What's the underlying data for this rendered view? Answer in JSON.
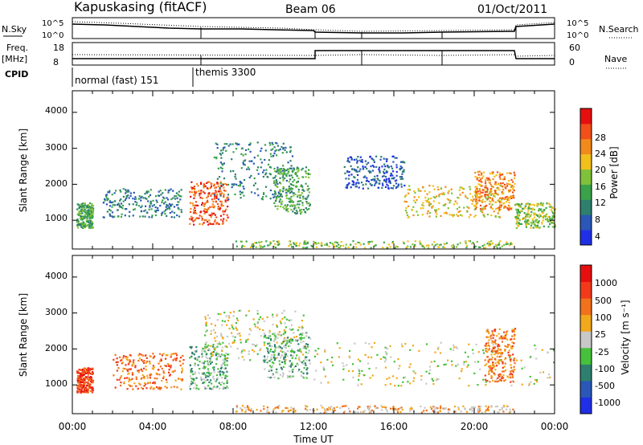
{
  "header": {
    "station": "Kapuskasing (fitACF)",
    "beam": "Beam 06",
    "date": "01/Oct/2011"
  },
  "nsky_panel": {
    "left_label": "N.Sky",
    "left_ticks": [
      "10^5",
      "10^0"
    ],
    "right_label": "N.Search",
    "right_ticks": [
      "10^5",
      "10^0"
    ]
  },
  "freq_panel": {
    "left_label_1": "Freq.",
    "left_label_2": "[MHz]",
    "left_ticks": [
      "18",
      "8"
    ],
    "right_label": "Nave",
    "right_ticks": [
      "60",
      "0"
    ]
  },
  "cpid": {
    "label": "CPID",
    "modes": [
      "normal (fast) 151",
      "themis 3300"
    ]
  },
  "x_axis": {
    "title": "Time UT",
    "ticks": [
      "00:00",
      "04:00",
      "08:00",
      "12:00",
      "16:00",
      "20:00",
      "00:00"
    ]
  },
  "chart_data": [
    {
      "type": "heatmap",
      "name": "power",
      "ylabel": "Slant Range [km]",
      "yticks": [
        "1000",
        "2000",
        "3000",
        "4000"
      ],
      "ylim": [
        200,
        4600
      ],
      "xlim": [
        0,
        24
      ],
      "colorbar_label": "Power [dB]",
      "colorbar_ticks": [
        "28",
        "24",
        "20",
        "16",
        "12",
        "8",
        "4"
      ],
      "colors": [
        "#1f2fe6",
        "#2a57b8",
        "#2e7f6e",
        "#3aa34a",
        "#7fc23a",
        "#f2c01b",
        "#f28a1b",
        "#f24f1b",
        "#e60f0f"
      ],
      "regions": [
        {
          "t0": 0.2,
          "t1": 1.0,
          "r0": 800,
          "r1": 1500,
          "level": 3
        },
        {
          "t0": 1.5,
          "t1": 5.5,
          "r0": 1100,
          "r1": 1900,
          "level": 2
        },
        {
          "t0": 5.8,
          "t1": 7.7,
          "r0": 900,
          "r1": 2100,
          "level": 7
        },
        {
          "t0": 7.0,
          "t1": 11.0,
          "r0": 1600,
          "r1": 3200,
          "level": 2
        },
        {
          "t0": 10.0,
          "t1": 11.8,
          "r0": 1200,
          "r1": 2500,
          "level": 3
        },
        {
          "t0": 13.5,
          "t1": 16.5,
          "r0": 1900,
          "r1": 2800,
          "level": 1
        },
        {
          "t0": 16.5,
          "t1": 21.5,
          "r0": 1100,
          "r1": 2000,
          "level": 5
        },
        {
          "t0": 20.0,
          "t1": 22.0,
          "r0": 1300,
          "r1": 2400,
          "level": 6
        },
        {
          "t0": 22.0,
          "t1": 24.0,
          "r0": 800,
          "r1": 1500,
          "level": 4
        },
        {
          "t0": 8.0,
          "t1": 22.0,
          "r0": 250,
          "r1": 450,
          "level": 4
        }
      ]
    },
    {
      "type": "heatmap",
      "name": "velocity",
      "ylabel": "Slant Range [km]",
      "yticks": [
        "1000",
        "2000",
        "3000",
        "4000"
      ],
      "ylim": [
        200,
        4600
      ],
      "xlim": [
        0,
        24
      ],
      "colorbar_label": "Velocity  [m s⁻¹]",
      "colorbar_ticks": [
        "1000",
        "500",
        "100",
        "25",
        "-25",
        "-100",
        "-500",
        "-1000"
      ],
      "colors": [
        "#1f2fe6",
        "#2a57b8",
        "#2e7f6e",
        "#46c23a",
        "#c8c8c8",
        "#f2a81b",
        "#f2711b",
        "#f23a1b",
        "#e60f0f"
      ],
      "regions": [
        {
          "t0": 0.2,
          "t1": 1.0,
          "r0": 800,
          "r1": 1500,
          "level": 7
        },
        {
          "t0": 2.0,
          "t1": 5.5,
          "r0": 900,
          "r1": 1900,
          "level": 6
        },
        {
          "t0": 5.8,
          "t1": 7.7,
          "r0": 900,
          "r1": 2100,
          "level": 3
        },
        {
          "t0": 6.5,
          "t1": 11.5,
          "r0": 1700,
          "r1": 3100,
          "level": 4
        },
        {
          "t0": 9.5,
          "t1": 11.8,
          "r0": 1200,
          "r1": 2500,
          "level": 3
        },
        {
          "t0": 12.0,
          "t1": 24.0,
          "r0": 1000,
          "r1": 2200,
          "level": 4
        },
        {
          "t0": 20.5,
          "t1": 22.0,
          "r0": 1100,
          "r1": 2600,
          "level": 6
        },
        {
          "t0": 8.0,
          "t1": 22.0,
          "r0": 250,
          "r1": 450,
          "level": 5
        }
      ]
    }
  ]
}
